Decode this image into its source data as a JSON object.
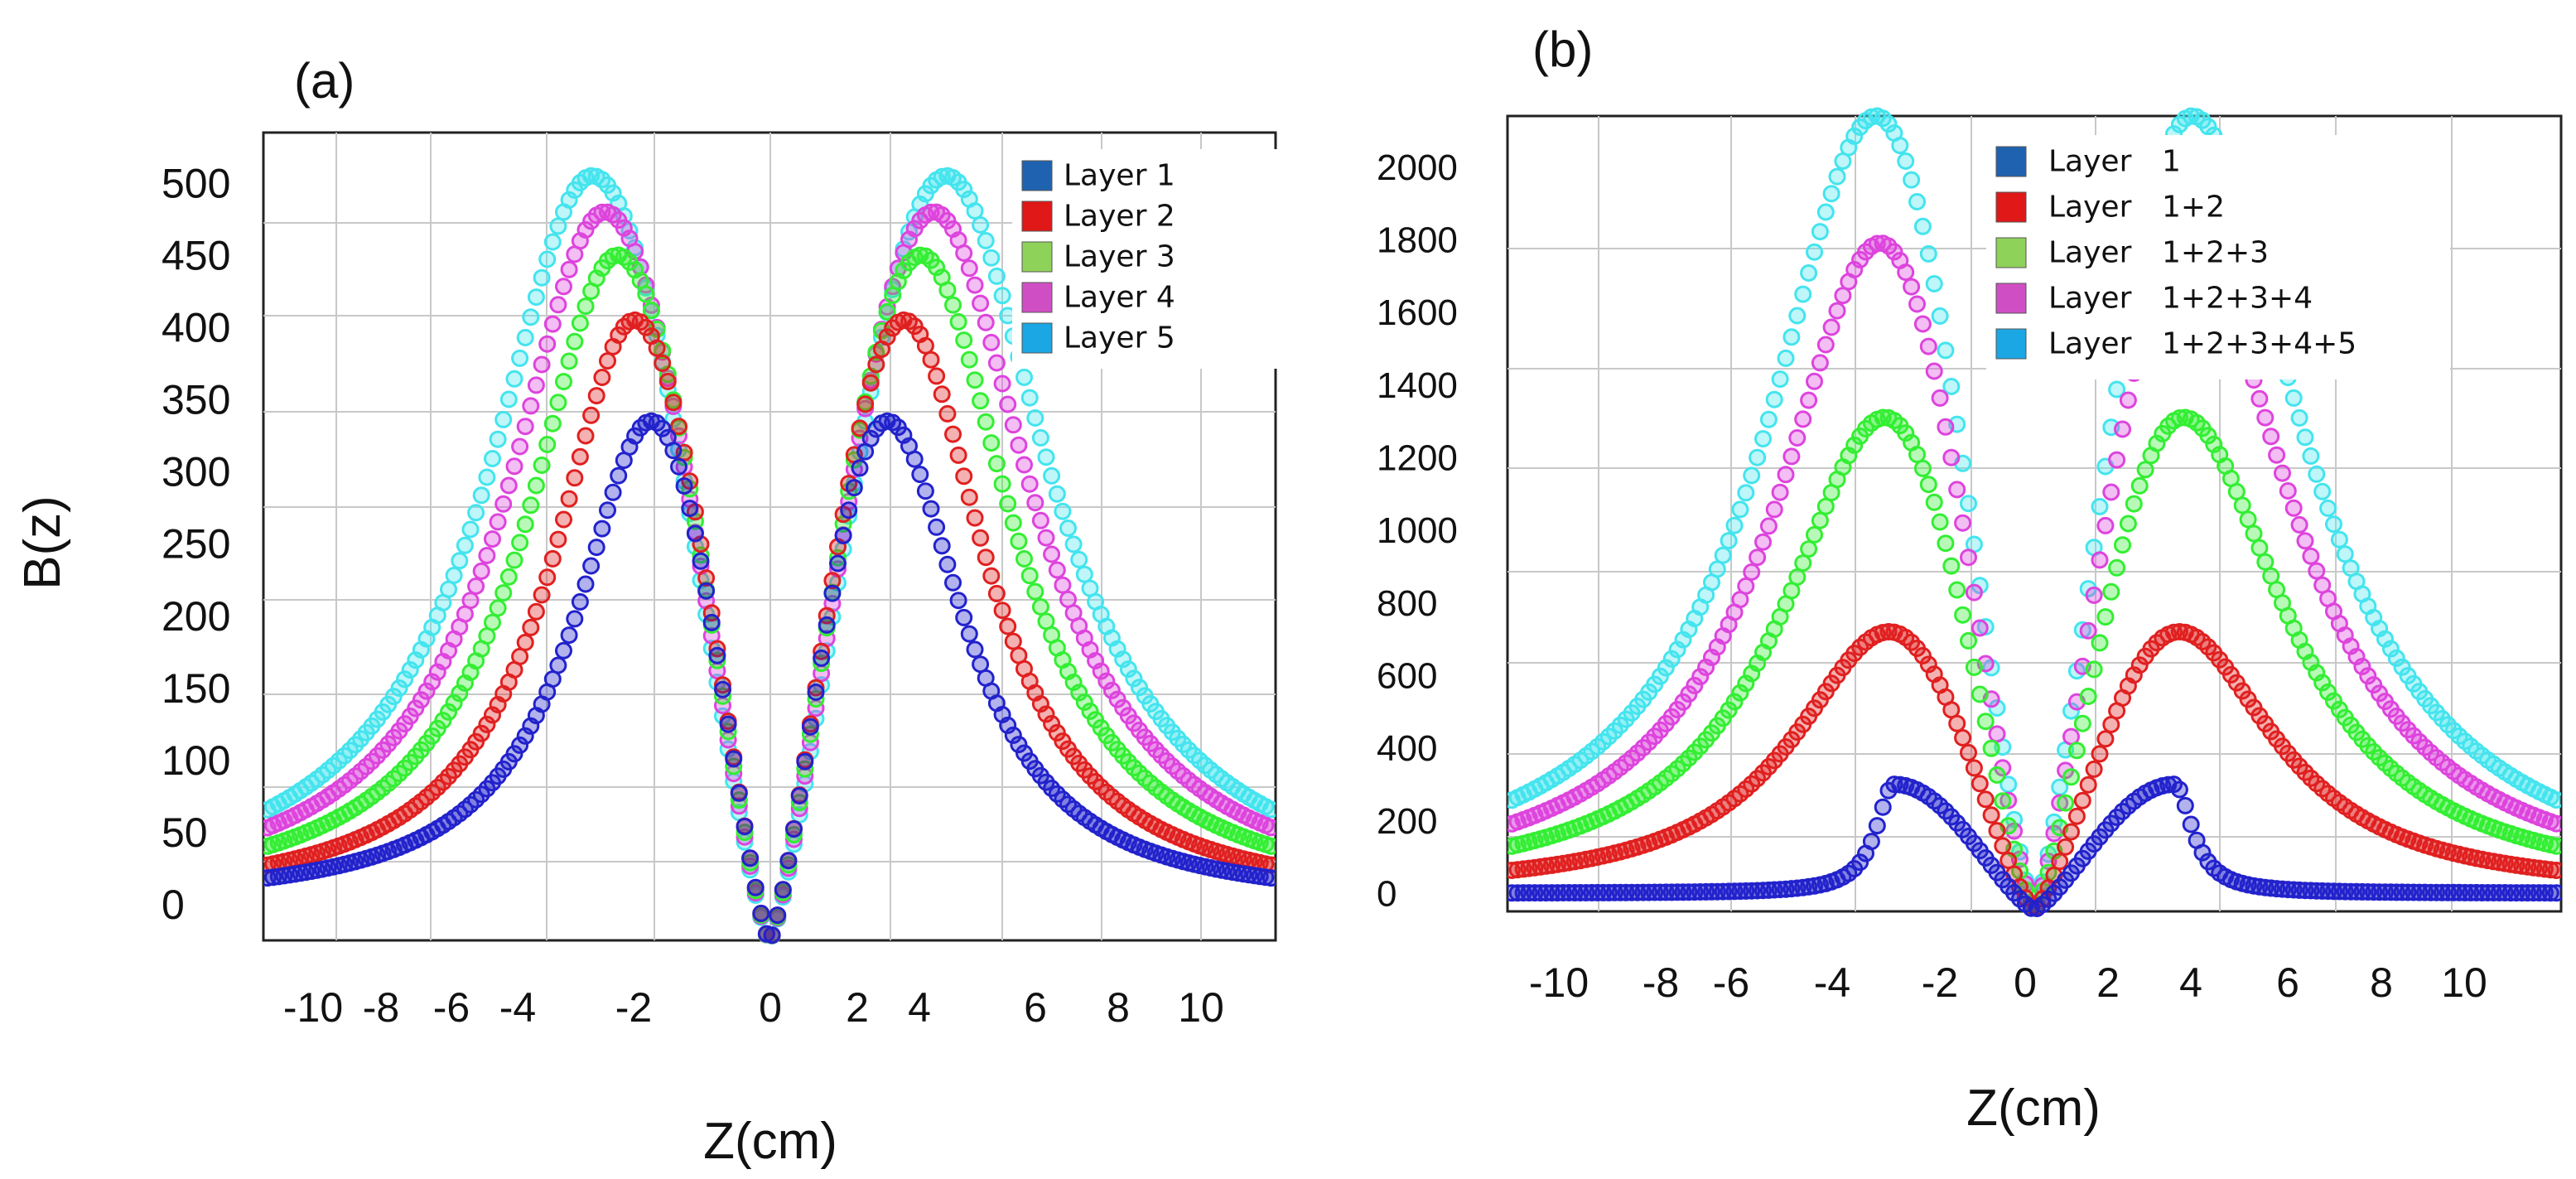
{
  "chart_data": [
    {
      "type": "scatter",
      "panel_label": "(a)",
      "title": "",
      "xlabel": "Z(cm)",
      "ylabel": "B(z)",
      "xlim": [
        -12,
        12
      ],
      "ylim": [
        -25,
        535
      ],
      "xticks": [
        -10,
        -8,
        -6,
        -4,
        -2,
        0,
        2,
        4,
        6,
        8,
        10
      ],
      "xtick_labels": [
        "-10",
        "-8",
        "-6",
        "-4",
        "-2",
        "0",
        "2",
        "4",
        "6",
        "8",
        "10"
      ],
      "yticks": [
        0,
        50,
        100,
        150,
        200,
        250,
        300,
        350,
        400,
        450,
        500
      ],
      "ytick_labels": [
        "0",
        "50",
        "100",
        "150",
        "200",
        "250",
        "300",
        "350",
        "400",
        "450",
        "500"
      ],
      "grid": true,
      "legend_position": "top-right",
      "series": [
        {
          "name": "Layer 1",
          "color": "#2222cc",
          "legend_color": "#1f63b0",
          "peak_z": 2.8,
          "peak_value": 335,
          "edge_value": 20,
          "center_value": -25
        },
        {
          "name": "Layer 2",
          "color": "#e02020",
          "legend_color": "#e01818",
          "peak_z": 3.2,
          "peak_value": 405,
          "edge_value": 30,
          "center_value": -25
        },
        {
          "name": "Layer 3",
          "color": "#33ee33",
          "legend_color": "#8ed25a",
          "peak_z": 3.6,
          "peak_value": 450,
          "edge_value": 45,
          "center_value": -25
        },
        {
          "name": "Layer 4",
          "color": "#dd44dd",
          "legend_color": "#d04ec4",
          "peak_z": 3.9,
          "peak_value": 480,
          "edge_value": 60,
          "center_value": -25
        },
        {
          "name": "Layer 5",
          "color": "#44e4ee",
          "legend_color": "#1ba6e4",
          "peak_z": 4.2,
          "peak_value": 505,
          "edge_value": 75,
          "center_value": -25
        }
      ]
    },
    {
      "type": "scatter",
      "panel_label": "(b)",
      "title": "",
      "xlabel": "Z(cm)",
      "ylabel": "",
      "xlim": [
        -12,
        12
      ],
      "ylim": [
        -50,
        2140
      ],
      "xticks": [
        -10,
        -8,
        -6,
        -4,
        -2,
        0,
        2,
        4,
        6,
        8,
        10
      ],
      "xtick_labels": [
        "-10",
        "-8",
        "-6",
        "-4",
        "-2",
        "0",
        "2",
        "4",
        "6",
        "8",
        "10"
      ],
      "yticks": [
        0,
        200,
        400,
        600,
        800,
        1000,
        1200,
        1400,
        1600,
        1800,
        2000
      ],
      "ytick_labels": [
        "0",
        "200",
        "400",
        "600",
        "800",
        "1000",
        "1200",
        "1400",
        "1600",
        "1800",
        "2000"
      ],
      "grid": true,
      "legend_position": "top-center",
      "series": [
        {
          "name": "Layer   1",
          "color": "#2222cc",
          "legend_color": "#1f63b0",
          "peak_z": 3.2,
          "peak_value": 300,
          "edge_value": 0,
          "center_value": -45
        },
        {
          "name": "Layer   1+2",
          "color": "#e02020",
          "legend_color": "#e01818",
          "peak_z": 3.3,
          "peak_value": 720,
          "edge_value": 70,
          "center_value": -45
        },
        {
          "name": "Layer   1+2+3",
          "color": "#33ee33",
          "legend_color": "#8ed25a",
          "peak_z": 3.4,
          "peak_value": 1310,
          "edge_value": 145,
          "center_value": -45
        },
        {
          "name": "Layer   1+2+3+4",
          "color": "#dd44dd",
          "legend_color": "#d04ec4",
          "peak_z": 3.5,
          "peak_value": 1790,
          "edge_value": 215,
          "center_value": -45
        },
        {
          "name": "Layer   1+2+3+4+5",
          "color": "#44e4ee",
          "legend_color": "#1ba6e4",
          "peak_z": 3.6,
          "peak_value": 2140,
          "edge_value": 290,
          "center_value": -45
        }
      ]
    }
  ]
}
